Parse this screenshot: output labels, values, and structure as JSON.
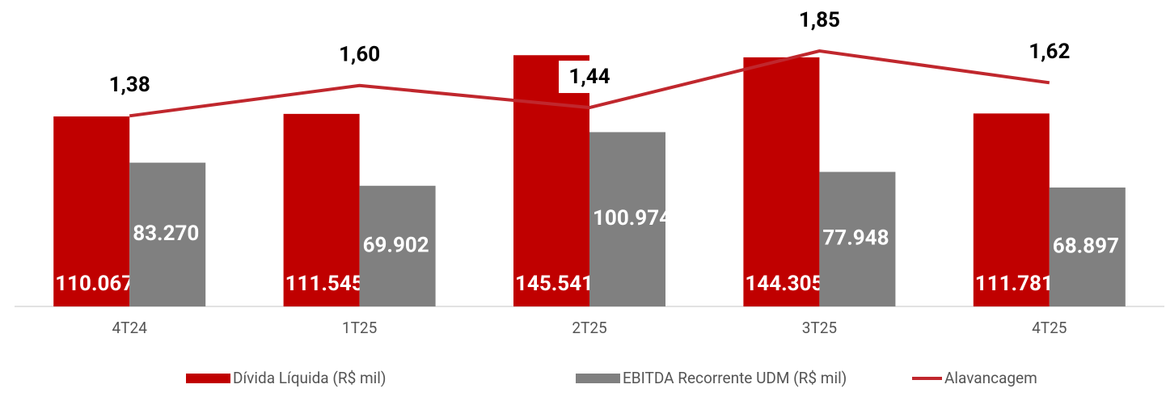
{
  "chart_data": {
    "type": "bar_line",
    "categories": [
      "4T24",
      "1T25",
      "2T25",
      "3T25",
      "4T25"
    ],
    "series": [
      {
        "name": "Dívida Líquida (R$ mil)",
        "color": "#c00000",
        "values": [
          110067,
          111545,
          145541,
          144305,
          111781
        ],
        "value_labels": [
          "110.067",
          "111.545",
          "145.541",
          "144.305",
          "111.781"
        ]
      },
      {
        "name": "EBITDA Recorrente UDM (R$ mil)",
        "color": "#808080",
        "values": [
          83270,
          69902,
          100974,
          77948,
          68897
        ],
        "value_labels": [
          "83.270",
          "69.902",
          "100.974",
          "77.948",
          "68.897"
        ]
      },
      {
        "name": "Alavancagem",
        "color": "#c0272d",
        "axis": "y2",
        "type": "line",
        "values": [
          1.38,
          1.6,
          1.44,
          1.85,
          1.62
        ],
        "value_labels": [
          "1,38",
          "1,60",
          "1,44",
          "1,85",
          "1,62"
        ]
      }
    ],
    "ylim": [
      0,
      160000
    ],
    "y2lim": [
      0,
      2
    ],
    "grid": false,
    "legend": "bottom"
  }
}
